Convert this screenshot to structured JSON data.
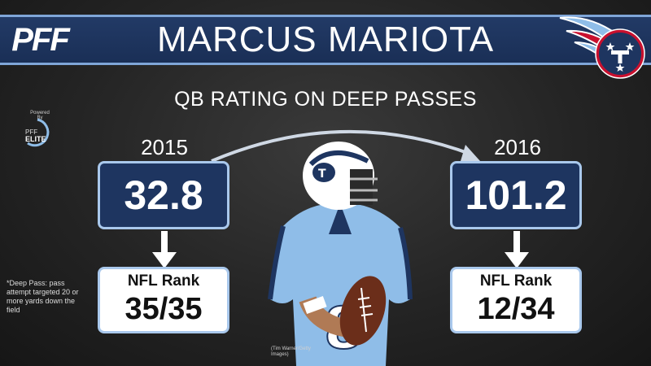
{
  "header": {
    "logo_text": "PFF",
    "player_name": "MARCUS MARIOTA",
    "team_logo_icon": "titans-logo-icon"
  },
  "subtitle": "QB RATING ON DEEP PASSES",
  "badge": {
    "powered_by": "Powered By",
    "pff": "PFF",
    "elite": "ELITE"
  },
  "seasons": [
    {
      "year": "2015",
      "rating": "32.8",
      "rank_label": "NFL Rank",
      "rank": "35/35"
    },
    {
      "year": "2016",
      "rating": "101.2",
      "rank_label": "NFL Rank",
      "rank": "12/34"
    }
  ],
  "footnote": "*Deep Pass: pass attempt targeted 20 or more yards down the field",
  "photo_credit": "(Tim Warner/Getty Images)",
  "colors": {
    "navy": "#1e3560",
    "light_blue": "#a9c8ec",
    "titans_red": "#c8102e",
    "jersey_blue": "#8fbde8"
  }
}
